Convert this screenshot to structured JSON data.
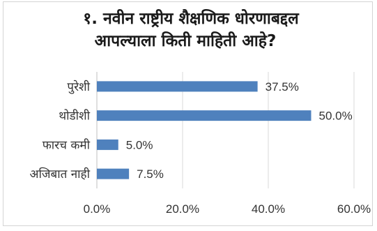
{
  "chart_data": {
    "type": "bar",
    "orientation": "horizontal",
    "title_lines": [
      "१. नवीन राष्ट्रीय शैक्षणिक धोरणाबद्दल",
      "आपल्याला किती माहिती आहे?"
    ],
    "categories": [
      "पुरेशी",
      "थोडीशी",
      "फारच कमी",
      "अजिबात नाही"
    ],
    "values": [
      37.5,
      50.0,
      5.0,
      7.5
    ],
    "data_labels": [
      "37.5%",
      "50.0%",
      "5.0%",
      "7.5%"
    ],
    "x_ticks": [
      "0.0%",
      "20.0%",
      "40.0%",
      "60.0%"
    ],
    "xlim": [
      0,
      60
    ],
    "grid": true,
    "legend": "none",
    "bar_color": "#4f81bd"
  }
}
